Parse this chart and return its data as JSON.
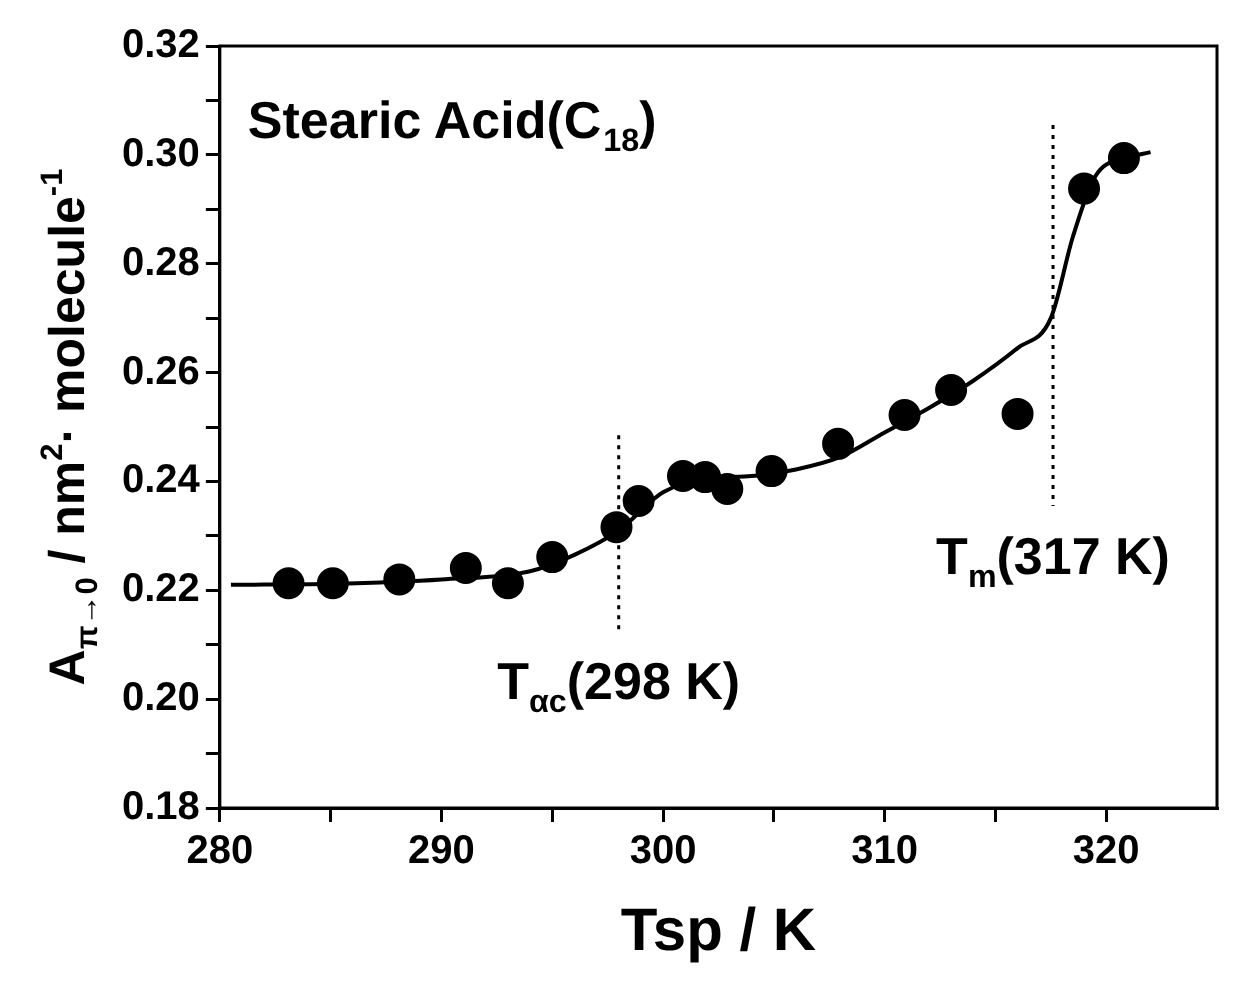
{
  "chart_data": {
    "type": "scatter",
    "title": "Stearic Acid(C$_{18}$)",
    "xlabel": "Tsp / K",
    "ylabel": "A$_{π→0}$ / nm$^{2}$· molecule$^{-1}$",
    "series": [
      {
        "color": "#000000",
        "marker": "circle",
        "x": [
          283.1,
          285.1,
          288.1,
          291.1,
          293.0,
          295.0,
          297.9,
          298.9,
          300.9,
          301.9,
          302.9,
          304.9,
          307.9,
          310.9,
          313.0,
          316.0,
          319.0,
          320.8
        ],
        "values": [
          0.2213,
          0.2213,
          0.222,
          0.2241,
          0.2213,
          0.2261,
          0.2316,
          0.2364,
          0.241,
          0.2408,
          0.2386,
          0.2419,
          0.2469,
          0.2522,
          0.2568,
          0.2524,
          0.2938,
          0.2994
        ]
      },
      {
        "type": "line",
        "color": "#000000",
        "marker": "none",
        "x": [
          280.5,
          285,
          290,
          294,
          296,
          298,
          300,
          302,
          304,
          306,
          308,
          310,
          312,
          314,
          316,
          317.5,
          318.5,
          319.5,
          321,
          322
        ],
        "values": [
          0.221,
          0.2212,
          0.222,
          0.2235,
          0.2265,
          0.231,
          0.238,
          0.2405,
          0.241,
          0.2422,
          0.2445,
          0.249,
          0.2535,
          0.2585,
          0.2645,
          0.27,
          0.285,
          0.296,
          0.2995,
          0.3005
        ]
      }
    ],
    "ref_lines": [
      {
        "axis": "x",
        "value": 298,
        "label": "T$_{αc}$(298 K)",
        "line_style": "dotted"
      },
      {
        "axis": "x",
        "value": 317.6,
        "label": "T$_{m}$(317 K)",
        "line_style": "dotted"
      }
    ],
    "xlim": [
      280,
      325
    ],
    "xticks": [
      280,
      {
        "value": 285,
        "label": null
      },
      290,
      {
        "value": 295,
        "label": null
      },
      300,
      {
        "value": 305,
        "label": null
      },
      310,
      {
        "value": 315,
        "label": null
      },
      320
    ],
    "ylim": [
      0.18,
      0.32
    ],
    "yticks": [
      {
        "value": 0.18,
        "label": "0.18"
      },
      {
        "value": 0.19,
        "label": null
      },
      {
        "value": 0.2,
        "label": "0.20"
      },
      {
        "value": 0.21,
        "label": null
      },
      {
        "value": 0.22,
        "label": "0.22"
      },
      {
        "value": 0.23,
        "label": null
      },
      {
        "value": 0.24,
        "label": "0.24"
      },
      {
        "value": 0.25,
        "label": null
      },
      {
        "value": 0.26,
        "label": "0.26"
      },
      {
        "value": 0.27,
        "label": null
      },
      {
        "value": 0.28,
        "label": "0.28"
      },
      {
        "value": 0.29,
        "label": null
      },
      {
        "value": 0.3,
        "label": "0.30"
      },
      {
        "value": 0.31,
        "label": null
      },
      {
        "value": 0.32,
        "label": "0.32"
      }
    ],
    "grid": false,
    "legend": false
  }
}
